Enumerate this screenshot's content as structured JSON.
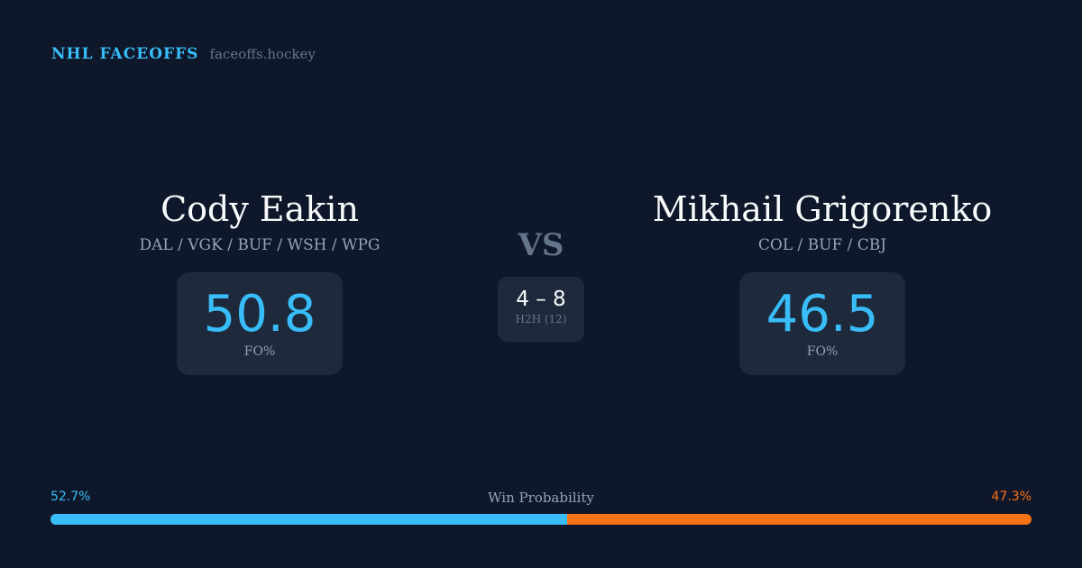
{
  "brand": {
    "name": "NHL FACEOFFS",
    "url": "faceoffs.hockey"
  },
  "player1": {
    "name": "Cody Eakin",
    "teams": "DAL / VGK / BUF / WSH / WPG",
    "fo_pct": "50.8",
    "fo_label": "FO%"
  },
  "player2": {
    "name": "Mikhail Grigorenko",
    "teams": "COL / BUF / CBJ",
    "fo_pct": "46.5",
    "fo_label": "FO%"
  },
  "vs": "VS",
  "h2h": {
    "score": "4 – 8",
    "label": "H2H (12)"
  },
  "win_probability": {
    "label": "Win Probability",
    "left": "52.7%",
    "right": "47.3%",
    "left_value": 52.7,
    "colors": {
      "left": "#38bdf8",
      "right": "#f97316"
    }
  }
}
